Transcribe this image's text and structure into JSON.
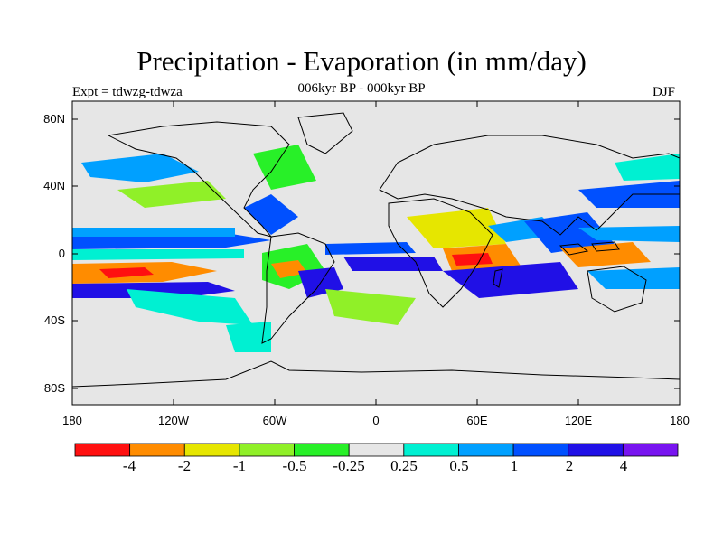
{
  "title": "Precipitation - Evaporation (in mm/day)",
  "subtitle": "006kyr BP - 000kyr BP",
  "experiment": "Expt = tdwzg-tdwza",
  "season": "DJF",
  "lat_ticks": [
    "80N",
    "40N",
    "0",
    "40S",
    "80S"
  ],
  "lon_ticks": [
    "180",
    "120W",
    "60W",
    "0",
    "60E",
    "120E",
    "180"
  ],
  "colorbar": {
    "labels": [
      "-4",
      "-2",
      "-1",
      "-0.5",
      "-0.25",
      "0.25",
      "0.5",
      "1",
      "2",
      "4"
    ],
    "colors": [
      "#ff1010",
      "#ff8c00",
      "#e6e600",
      "#90f028",
      "#28f028",
      "#e6e6e6",
      "#00f0d2",
      "#00a0ff",
      "#0050ff",
      "#2010e6",
      "#7814f0"
    ]
  },
  "map_colors": {
    "background": "#e6e6e6",
    "coast": "#000000"
  }
}
